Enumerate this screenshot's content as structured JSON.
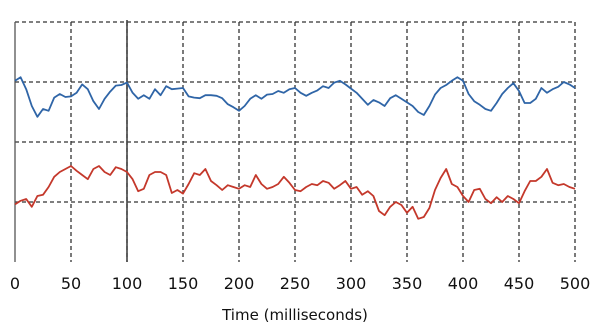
{
  "chart_data": {
    "type": "line",
    "xlabel": "Time (milliseconds)",
    "ylabel": "",
    "xlim": [
      0,
      500
    ],
    "ylim": [
      0,
      4
    ],
    "x_ticks": [
      0,
      50,
      100,
      150,
      200,
      250,
      300,
      350,
      400,
      450,
      500
    ],
    "y_gridlines": [
      1,
      2,
      3
    ],
    "grid": true,
    "grid_style": "dashed",
    "marker_line_x": 100,
    "series": [
      {
        "color": "#2f65a7",
        "x": [
          0,
          5,
          10,
          15,
          20,
          25,
          30,
          35,
          40,
          45,
          50,
          55,
          60,
          65,
          70,
          75,
          80,
          85,
          90,
          95,
          100,
          105,
          110,
          115,
          120,
          125,
          130,
          135,
          140,
          145,
          150,
          155,
          160,
          165,
          170,
          175,
          180,
          185,
          190,
          195,
          200,
          205,
          210,
          215,
          220,
          225,
          230,
          235,
          240,
          245,
          250,
          255,
          260,
          265,
          270,
          275,
          280,
          285,
          290,
          295,
          300,
          305,
          310,
          315,
          320,
          325,
          330,
          335,
          340,
          345,
          350,
          355,
          360,
          365,
          370,
          375,
          380,
          385,
          390,
          395,
          400,
          405,
          410,
          415,
          420,
          425,
          430,
          435,
          440,
          445,
          450,
          455,
          460,
          465,
          470,
          475,
          480,
          485,
          490,
          495,
          500
        ],
        "values": [
          3.02,
          3.08,
          2.88,
          2.6,
          2.42,
          2.55,
          2.52,
          2.74,
          2.8,
          2.75,
          2.76,
          2.82,
          2.96,
          2.88,
          2.68,
          2.55,
          2.72,
          2.84,
          2.94,
          2.95,
          2.99,
          2.82,
          2.72,
          2.78,
          2.72,
          2.88,
          2.78,
          2.93,
          2.88,
          2.89,
          2.9,
          2.76,
          2.74,
          2.73,
          2.78,
          2.78,
          2.77,
          2.73,
          2.63,
          2.58,
          2.52,
          2.6,
          2.72,
          2.78,
          2.72,
          2.79,
          2.8,
          2.85,
          2.82,
          2.88,
          2.9,
          2.82,
          2.77,
          2.82,
          2.86,
          2.93,
          2.9,
          2.99,
          3.02,
          2.96,
          2.89,
          2.82,
          2.72,
          2.62,
          2.7,
          2.66,
          2.6,
          2.73,
          2.78,
          2.72,
          2.66,
          2.6,
          2.5,
          2.45,
          2.6,
          2.79,
          2.9,
          2.95,
          3.02,
          3.08,
          3.02,
          2.8,
          2.68,
          2.62,
          2.55,
          2.52,
          2.65,
          2.8,
          2.9,
          2.98,
          2.85,
          2.65,
          2.65,
          2.72,
          2.9,
          2.82,
          2.88,
          2.92,
          3.0,
          2.96,
          2.9
        ]
      },
      {
        "color": "#c4382b",
        "x": [
          0,
          5,
          10,
          15,
          20,
          25,
          30,
          35,
          40,
          45,
          50,
          55,
          60,
          65,
          70,
          75,
          80,
          85,
          90,
          95,
          100,
          105,
          110,
          115,
          120,
          125,
          130,
          135,
          140,
          145,
          150,
          155,
          160,
          165,
          170,
          175,
          180,
          185,
          190,
          195,
          200,
          205,
          210,
          215,
          220,
          225,
          230,
          235,
          240,
          245,
          250,
          255,
          260,
          265,
          270,
          275,
          280,
          285,
          290,
          295,
          300,
          305,
          310,
          315,
          320,
          325,
          330,
          335,
          340,
          345,
          350,
          355,
          360,
          365,
          370,
          375,
          380,
          385,
          390,
          395,
          400,
          405,
          410,
          415,
          420,
          425,
          430,
          435,
          440,
          445,
          450,
          455,
          460,
          465,
          470,
          475,
          480,
          485,
          490,
          495,
          500
        ],
        "values": [
          0.96,
          1.02,
          1.05,
          0.92,
          1.1,
          1.12,
          1.25,
          1.42,
          1.5,
          1.55,
          1.6,
          1.52,
          1.45,
          1.38,
          1.55,
          1.6,
          1.5,
          1.45,
          1.58,
          1.55,
          1.5,
          1.38,
          1.18,
          1.22,
          1.45,
          1.5,
          1.5,
          1.45,
          1.15,
          1.2,
          1.14,
          1.3,
          1.48,
          1.45,
          1.55,
          1.35,
          1.28,
          1.2,
          1.28,
          1.25,
          1.22,
          1.28,
          1.25,
          1.45,
          1.3,
          1.22,
          1.25,
          1.3,
          1.42,
          1.32,
          1.2,
          1.18,
          1.25,
          1.3,
          1.28,
          1.35,
          1.32,
          1.22,
          1.28,
          1.35,
          1.22,
          1.25,
          1.12,
          1.18,
          1.1,
          0.85,
          0.78,
          0.92,
          1.0,
          0.95,
          0.82,
          0.92,
          0.72,
          0.75,
          0.9,
          1.2,
          1.4,
          1.55,
          1.3,
          1.25,
          1.1,
          1.0,
          1.2,
          1.22,
          1.05,
          0.98,
          1.08,
          1.0,
          1.1,
          1.05,
          0.98,
          1.18,
          1.35,
          1.35,
          1.42,
          1.55,
          1.32,
          1.28,
          1.3,
          1.25,
          1.22
        ]
      }
    ]
  }
}
